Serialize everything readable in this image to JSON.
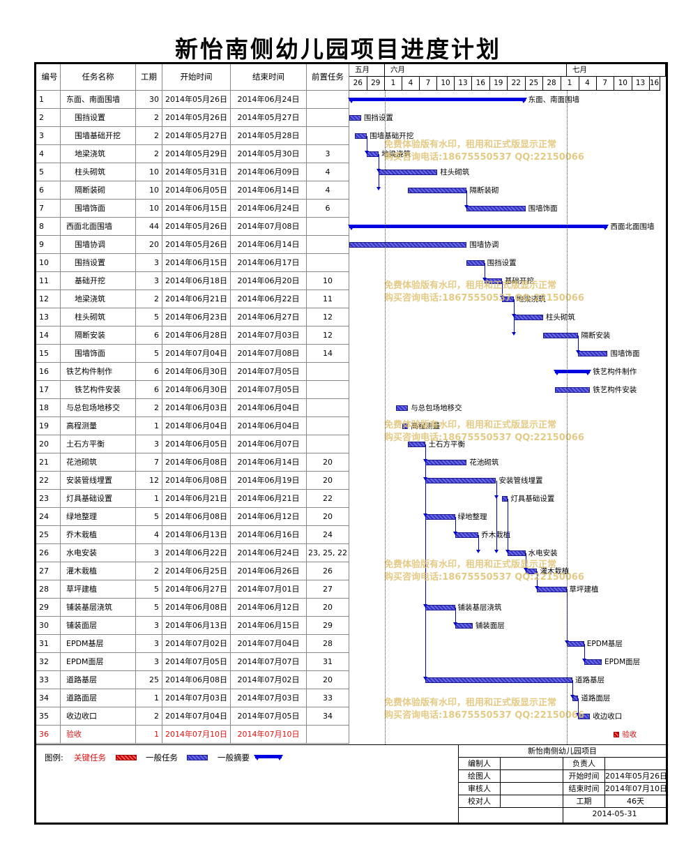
{
  "title": "新怡南侧幼儿园项目进度计划",
  "headers": {
    "no": "编号",
    "name": "任务名称",
    "dur": "工期",
    "start": "开始时间",
    "end": "结束时间",
    "pre": "前置任务"
  },
  "months": [
    "五月",
    "六月",
    "七月"
  ],
  "days": [
    "26",
    "29",
    "1",
    "4",
    "7",
    "10",
    "13",
    "16",
    "19",
    "22",
    "25",
    "28",
    "1",
    "4",
    "7",
    "10",
    "13",
    "16"
  ],
  "tasks": [
    {
      "no": "1",
      "name": "东面、南面围墙",
      "indent": false,
      "dur": "30",
      "start": "2014年05月26日",
      "end": "2014年06月24日",
      "pre": "",
      "type": "summary"
    },
    {
      "no": "2",
      "name": "围挡设置",
      "indent": true,
      "dur": "2",
      "start": "2014年05月26日",
      "end": "2014年05月27日",
      "pre": "",
      "type": "task"
    },
    {
      "no": "3",
      "name": "围墙基础开挖",
      "indent": true,
      "dur": "2",
      "start": "2014年05月27日",
      "end": "2014年05月28日",
      "pre": "",
      "type": "task"
    },
    {
      "no": "4",
      "name": "地梁浇筑",
      "indent": true,
      "dur": "2",
      "start": "2014年05月29日",
      "end": "2014年05月30日",
      "pre": "3",
      "type": "task"
    },
    {
      "no": "5",
      "name": "柱头砌筑",
      "indent": true,
      "dur": "10",
      "start": "2014年05月31日",
      "end": "2014年06月09日",
      "pre": "4",
      "type": "task"
    },
    {
      "no": "6",
      "name": "隔断装砌",
      "indent": true,
      "dur": "10",
      "start": "2014年06月05日",
      "end": "2014年06月14日",
      "pre": "4",
      "type": "task"
    },
    {
      "no": "7",
      "name": "围墙饰面",
      "indent": true,
      "dur": "10",
      "start": "2014年06月15日",
      "end": "2014年06月24日",
      "pre": "6",
      "type": "task"
    },
    {
      "no": "8",
      "name": "西面北面围墙",
      "indent": false,
      "dur": "44",
      "start": "2014年05月26日",
      "end": "2014年07月08日",
      "pre": "",
      "type": "summary"
    },
    {
      "no": "9",
      "name": "围墙协调",
      "indent": true,
      "dur": "20",
      "start": "2014年05月26日",
      "end": "2014年06月14日",
      "pre": "",
      "type": "task"
    },
    {
      "no": "10",
      "name": "围挡设置",
      "indent": true,
      "dur": "3",
      "start": "2014年06月15日",
      "end": "2014年06月17日",
      "pre": "",
      "type": "task"
    },
    {
      "no": "11",
      "name": "基础开挖",
      "indent": true,
      "dur": "3",
      "start": "2014年06月18日",
      "end": "2014年06月20日",
      "pre": "10",
      "type": "task"
    },
    {
      "no": "12",
      "name": "地梁浇筑",
      "indent": true,
      "dur": "2",
      "start": "2014年06月21日",
      "end": "2014年06月22日",
      "pre": "11",
      "type": "task"
    },
    {
      "no": "13",
      "name": "柱头砌筑",
      "indent": true,
      "dur": "5",
      "start": "2014年06月23日",
      "end": "2014年06月27日",
      "pre": "12",
      "type": "task"
    },
    {
      "no": "14",
      "name": "隔断安装",
      "indent": true,
      "dur": "6",
      "start": "2014年06月28日",
      "end": "2014年07月03日",
      "pre": "12",
      "type": "task"
    },
    {
      "no": "15",
      "name": "围墙饰面",
      "indent": true,
      "dur": "5",
      "start": "2014年07月04日",
      "end": "2014年07月08日",
      "pre": "14",
      "type": "task"
    },
    {
      "no": "16",
      "name": "铁艺构件制作",
      "indent": false,
      "dur": "6",
      "start": "2014年06月30日",
      "end": "2014年07月05日",
      "pre": "",
      "type": "summary"
    },
    {
      "no": "17",
      "name": "铁艺构件安装",
      "indent": true,
      "dur": "6",
      "start": "2014年06月30日",
      "end": "2014年07月05日",
      "pre": "",
      "type": "task"
    },
    {
      "no": "18",
      "name": "与总包场地移交",
      "indent": false,
      "dur": "2",
      "start": "2014年06月03日",
      "end": "2014年06月04日",
      "pre": "",
      "type": "task"
    },
    {
      "no": "19",
      "name": "高程测量",
      "indent": false,
      "dur": "1",
      "start": "2014年06月04日",
      "end": "2014年06月04日",
      "pre": "",
      "type": "task"
    },
    {
      "no": "20",
      "name": "土石方平衡",
      "indent": false,
      "dur": "3",
      "start": "2014年06月05日",
      "end": "2014年06月07日",
      "pre": "",
      "type": "task"
    },
    {
      "no": "21",
      "name": "花池砌筑",
      "indent": false,
      "dur": "7",
      "start": "2014年06月08日",
      "end": "2014年06月14日",
      "pre": "20",
      "type": "task"
    },
    {
      "no": "22",
      "name": "安装管线埋置",
      "indent": false,
      "dur": "12",
      "start": "2014年06月08日",
      "end": "2014年06月19日",
      "pre": "20",
      "type": "task"
    },
    {
      "no": "23",
      "name": "灯具基础设置",
      "indent": false,
      "dur": "1",
      "start": "2014年06月21日",
      "end": "2014年06月21日",
      "pre": "22",
      "type": "task"
    },
    {
      "no": "24",
      "name": "绿地整理",
      "indent": false,
      "dur": "5",
      "start": "2014年06月08日",
      "end": "2014年06月12日",
      "pre": "20",
      "type": "task"
    },
    {
      "no": "25",
      "name": "乔木栽植",
      "indent": false,
      "dur": "4",
      "start": "2014年06月13日",
      "end": "2014年06月16日",
      "pre": "24",
      "type": "task"
    },
    {
      "no": "26",
      "name": "水电安装",
      "indent": false,
      "dur": "3",
      "start": "2014年06月22日",
      "end": "2014年06月24日",
      "pre": "23, 25, 22",
      "type": "task"
    },
    {
      "no": "27",
      "name": "灌木栽植",
      "indent": false,
      "dur": "2",
      "start": "2014年06月25日",
      "end": "2014年06月26日",
      "pre": "26",
      "type": "task"
    },
    {
      "no": "28",
      "name": "草坪建植",
      "indent": false,
      "dur": "5",
      "start": "2014年06月27日",
      "end": "2014年07月01日",
      "pre": "27",
      "type": "task"
    },
    {
      "no": "29",
      "name": "铺装基层浇筑",
      "indent": false,
      "dur": "5",
      "start": "2014年06月08日",
      "end": "2014年06月12日",
      "pre": "20",
      "type": "task"
    },
    {
      "no": "30",
      "name": "铺装面层",
      "indent": false,
      "dur": "3",
      "start": "2014年06月13日",
      "end": "2014年06月15日",
      "pre": "29",
      "type": "task"
    },
    {
      "no": "31",
      "name": "EPDM基层",
      "indent": false,
      "dur": "3",
      "start": "2014年07月02日",
      "end": "2014年07月04日",
      "pre": "28",
      "type": "task"
    },
    {
      "no": "32",
      "name": "EPDM面层",
      "indent": false,
      "dur": "3",
      "start": "2014年07月05日",
      "end": "2014年07月07日",
      "pre": "31",
      "type": "task"
    },
    {
      "no": "33",
      "name": "道路基层",
      "indent": false,
      "dur": "25",
      "start": "2014年06月08日",
      "end": "2014年07月02日",
      "pre": "20",
      "type": "task"
    },
    {
      "no": "34",
      "name": "道路面层",
      "indent": false,
      "dur": "1",
      "start": "2014年07月03日",
      "end": "2014年07月03日",
      "pre": "33",
      "type": "task"
    },
    {
      "no": "35",
      "name": "收边收口",
      "indent": false,
      "dur": "2",
      "start": "2014年07月04日",
      "end": "2014年07月05日",
      "pre": "34",
      "type": "task"
    },
    {
      "no": "36",
      "name": "验收",
      "indent": false,
      "dur": "1",
      "start": "2014年07月10日",
      "end": "2014年07月10日",
      "pre": "",
      "type": "critical"
    }
  ],
  "watermark": {
    "line1": "免费体验版有水印，租用和正式版显示正常",
    "line2": "购买咨询电话:18675550537 QQ:22150066"
  },
  "legend": {
    "label": "图例:",
    "critical": "关键任务",
    "normal": "一般任务",
    "summary": "一般摘要"
  },
  "info": {
    "project": "新怡南侧幼儿园项目",
    "editor": "编制人",
    "owner": "负责人",
    "drawer": "绘图人",
    "start_label": "开始时间",
    "start_value": "2014年05月26日",
    "reviewer": "审核人",
    "end_label": "结束时间",
    "end_value": "2014年07月10日",
    "checker": "校对人",
    "dur_label": "工期",
    "dur_value": "46天",
    "date": "2014-05-31"
  },
  "colors": {
    "task": "#4a4ad8",
    "summary": "#0000e0",
    "critical": "#e01010",
    "watermark": "#e0c170"
  }
}
